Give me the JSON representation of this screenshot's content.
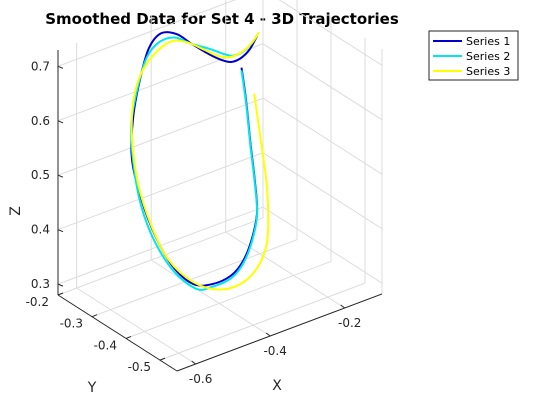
{
  "chart_data": {
    "type": "line",
    "title": "Smoothed Data for Set 4 - 3D Trajectories",
    "xlabel": "X",
    "ylabel": "Y",
    "zlabel": "Z",
    "xlim": [
      -0.65,
      -0.1
    ],
    "ylim": [
      -0.55,
      -0.2
    ],
    "zlim": [
      0.28,
      0.73
    ],
    "xticks": [
      -0.6,
      -0.4,
      -0.2
    ],
    "xtick_labels": [
      "-0.6",
      "-0.4",
      "-0.2"
    ],
    "yticks": [
      -0.5,
      -0.4,
      -0.3,
      -0.2
    ],
    "ytick_labels": [
      "-0.5",
      "-0.4",
      "-0.3",
      "-0.2"
    ],
    "zticks": [
      0.3,
      0.4,
      0.5,
      0.6,
      0.7
    ],
    "ztick_labels": [
      "0.3",
      "0.4",
      "0.5",
      "0.6",
      "0.7"
    ],
    "grid": true,
    "legend_position": "outside-top-right",
    "series": [
      {
        "name": "Series 1",
        "color": "#0000cd",
        "x": [
          -0.185,
          -0.2,
          -0.225,
          -0.25,
          -0.28,
          -0.33,
          -0.39,
          -0.45,
          -0.52,
          -0.58,
          -0.625,
          -0.645,
          -0.645,
          -0.625,
          -0.585,
          -0.53,
          -0.47,
          -0.41,
          -0.35,
          -0.3,
          -0.255,
          -0.22,
          -0.195,
          -0.17,
          -0.145,
          -0.125
        ],
        "y": [
          -0.23,
          -0.26,
          -0.3,
          -0.34,
          -0.38,
          -0.42,
          -0.46,
          -0.49,
          -0.51,
          -0.52,
          -0.51,
          -0.48,
          -0.44,
          -0.39,
          -0.35,
          -0.31,
          -0.27,
          -0.24,
          -0.22,
          -0.21,
          -0.21,
          -0.21,
          -0.21,
          -0.21,
          -0.21,
          -0.21
        ],
        "z": [
          0.59,
          0.545,
          0.49,
          0.445,
          0.41,
          0.39,
          0.38,
          0.38,
          0.39,
          0.41,
          0.45,
          0.5,
          0.55,
          0.6,
          0.65,
          0.69,
          0.715,
          0.715,
          0.69,
          0.655,
          0.625,
          0.605,
          0.595,
          0.595,
          0.605,
          0.625
        ]
      },
      {
        "name": "Series 2",
        "color": "#00e5ee",
        "x": [
          -0.185,
          -0.2,
          -0.225,
          -0.25,
          -0.28,
          -0.33,
          -0.39,
          -0.45,
          -0.52,
          -0.58,
          -0.63,
          -0.655,
          -0.655,
          -0.63,
          -0.59,
          -0.535,
          -0.475,
          -0.415,
          -0.355,
          -0.3,
          -0.255,
          -0.215,
          -0.19,
          -0.165,
          -0.14,
          -0.12
        ],
        "y": [
          -0.23,
          -0.26,
          -0.3,
          -0.34,
          -0.38,
          -0.42,
          -0.46,
          -0.49,
          -0.51,
          -0.53,
          -0.52,
          -0.49,
          -0.45,
          -0.4,
          -0.35,
          -0.31,
          -0.27,
          -0.24,
          -0.22,
          -0.21,
          -0.21,
          -0.21,
          -0.21,
          -0.21,
          -0.21,
          -0.21
        ],
        "z": [
          0.585,
          0.54,
          0.485,
          0.44,
          0.405,
          0.385,
          0.375,
          0.375,
          0.385,
          0.405,
          0.445,
          0.495,
          0.545,
          0.595,
          0.64,
          0.68,
          0.7,
          0.7,
          0.685,
          0.655,
          0.635,
          0.615,
          0.605,
          0.605,
          0.615,
          0.63
        ]
      },
      {
        "name": "Series 3",
        "color": "#ffff00",
        "x": [
          -0.16,
          -0.18,
          -0.21,
          -0.25,
          -0.3,
          -0.36,
          -0.43,
          -0.5,
          -0.56,
          -0.6,
          -0.61,
          -0.6,
          -0.57,
          -0.53,
          -0.48,
          -0.42,
          -0.36,
          -0.31,
          -0.265,
          -0.23,
          -0.2,
          -0.17,
          -0.14,
          -0.12
        ],
        "y": [
          -0.24,
          -0.28,
          -0.33,
          -0.38,
          -0.43,
          -0.47,
          -0.5,
          -0.51,
          -0.5,
          -0.47,
          -0.43,
          -0.38,
          -0.33,
          -0.29,
          -0.26,
          -0.24,
          -0.22,
          -0.21,
          -0.21,
          -0.21,
          -0.21,
          -0.21,
          -0.21,
          -0.21
        ],
        "z": [
          0.54,
          0.48,
          0.43,
          0.395,
          0.375,
          0.365,
          0.365,
          0.375,
          0.4,
          0.44,
          0.49,
          0.545,
          0.6,
          0.64,
          0.67,
          0.685,
          0.68,
          0.66,
          0.635,
          0.615,
          0.605,
          0.605,
          0.615,
          0.63
        ]
      }
    ]
  }
}
